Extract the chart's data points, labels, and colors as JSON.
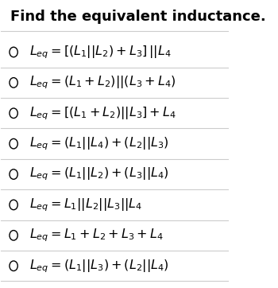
{
  "title": "Find the equivalent inductance.",
  "title_fontsize": 13,
  "title_bold": true,
  "background_color": "#ffffff",
  "options": [
    "$L_{eq} = [(L_1||L_2) + L_3]\\,||L_4$",
    "$L_{eq} = (L_1 + L_2)||(L_3 + L_4)$",
    "$L_{eq} = [(L_1 + L_2)||L_3] + L_4$",
    "$L_{eq} = (L_1||L_4) + (L_2||L_3)$",
    "$L_{eq} = (L_1||L_2) + (L_3||L_4)$",
    "$L_{eq} = L_1||L_2||L_3||L_4$",
    "$L_{eq} = L_1 + L_2 + L_3 + L_4$",
    "$L_{eq} = (L_1||L_3) + (L_2||L_4)$"
  ],
  "circle_color": "#000000",
  "text_color": "#000000",
  "line_color": "#cccccc",
  "option_fontsize": 11.5,
  "fig_width": 3.5,
  "fig_height": 3.62,
  "dpi": 100
}
